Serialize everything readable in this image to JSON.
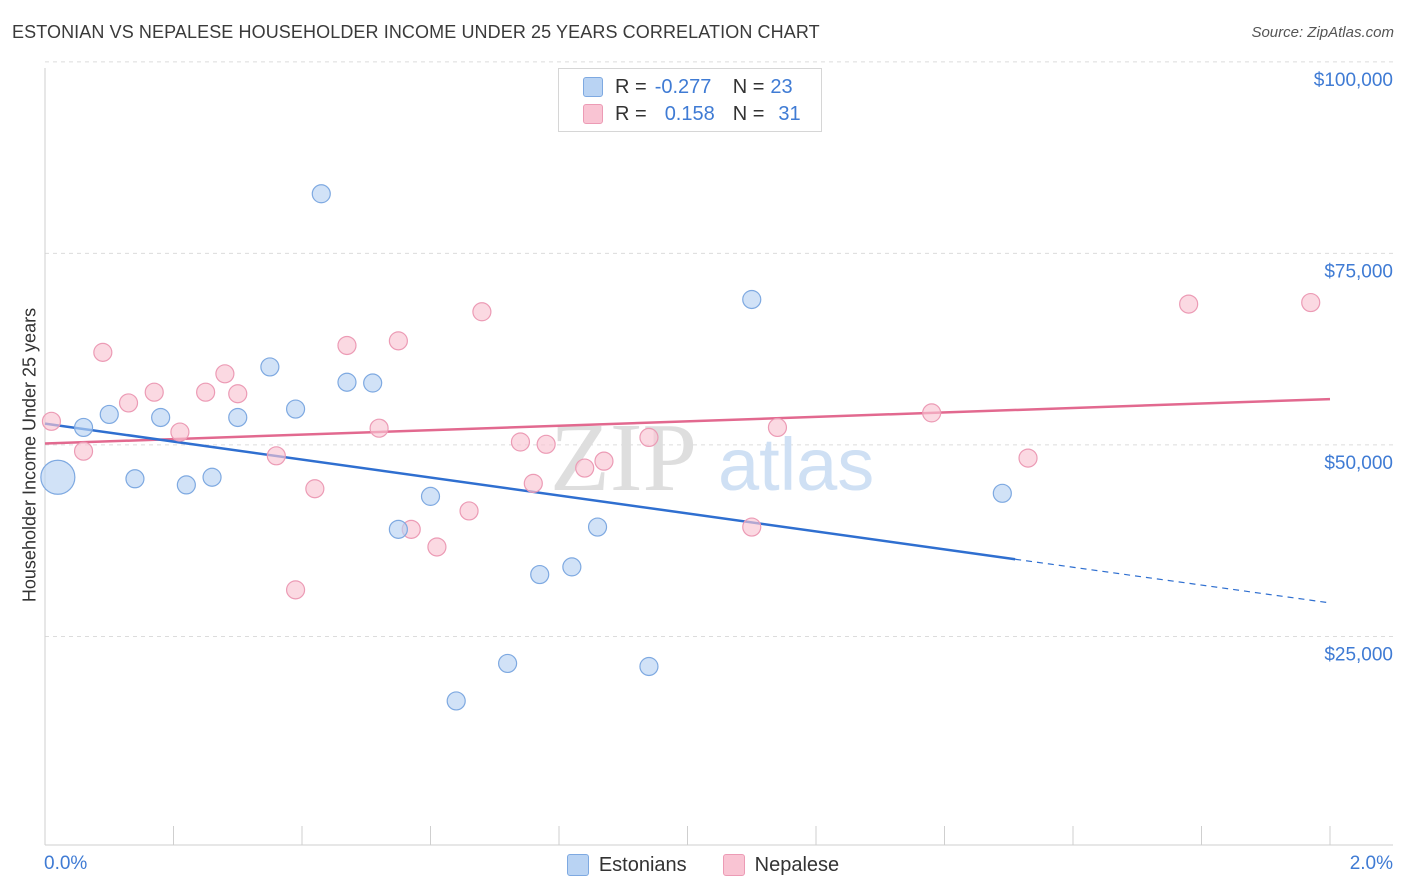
{
  "title": "ESTONIAN VS NEPALESE HOUSEHOLDER INCOME UNDER 25 YEARS CORRELATION CHART",
  "source": "Source: ZipAtlas.com",
  "watermark": {
    "zip": "ZIP",
    "atlas": "atlas"
  },
  "legend": {
    "rows": [
      {
        "r_label": "R =",
        "r_value": "-0.277",
        "n_label": "N =",
        "n_value": "23"
      },
      {
        "r_label": "R =",
        "r_value": "0.158",
        "n_label": "N =",
        "n_value": "31"
      }
    ]
  },
  "bottom_legend": [
    "Estonians",
    "Nepalese"
  ],
  "colors": {
    "estonians_fill": "#b9d3f3",
    "estonians_stroke": "#7ea9e1",
    "estonians_line": "#2f6fd0",
    "nepalese_fill": "#f9c4d3",
    "nepalese_stroke": "#ec9bb5",
    "nepalese_line": "#e2698f",
    "axis_label": "#3f7bd4",
    "grid": "#dcdcdc"
  },
  "chart_data": {
    "type": "scatter",
    "title": "ESTONIAN VS NEPALESE HOUSEHOLDER INCOME UNDER 25 YEARS CORRELATION CHART",
    "xlabel": "",
    "ylabel": "Householder Income Under 25 years",
    "x_tick_labels": [
      "0.0%",
      "2.0%"
    ],
    "y_tick_labels": [
      "$100,000",
      "$75,000",
      "$50,000",
      "$25,000"
    ],
    "y_ticks": [
      100000,
      75000,
      50000,
      25000
    ],
    "xlim": [
      0,
      2.0
    ],
    "ylim": [
      0,
      102000
    ],
    "grid": true,
    "legend_position": "top-center",
    "series": [
      {
        "name": "Estonians",
        "points": [
          {
            "x": 0.02,
            "y": 48000,
            "size": 34
          },
          {
            "x": 0.06,
            "y": 54500,
            "size": 18
          },
          {
            "x": 0.1,
            "y": 56200,
            "size": 18
          },
          {
            "x": 0.14,
            "y": 47800,
            "size": 18
          },
          {
            "x": 0.18,
            "y": 55800,
            "size": 18
          },
          {
            "x": 0.22,
            "y": 47000,
            "size": 18
          },
          {
            "x": 0.26,
            "y": 48000,
            "size": 18
          },
          {
            "x": 0.3,
            "y": 55800,
            "size": 18
          },
          {
            "x": 0.35,
            "y": 62400,
            "size": 18
          },
          {
            "x": 0.39,
            "y": 56900,
            "size": 18
          },
          {
            "x": 0.43,
            "y": 85000,
            "size": 18
          },
          {
            "x": 0.47,
            "y": 60400,
            "size": 18
          },
          {
            "x": 0.51,
            "y": 60300,
            "size": 18
          },
          {
            "x": 0.55,
            "y": 41200,
            "size": 18
          },
          {
            "x": 0.6,
            "y": 45500,
            "size": 18
          },
          {
            "x": 0.64,
            "y": 18800,
            "size": 18
          },
          {
            "x": 0.72,
            "y": 23700,
            "size": 18
          },
          {
            "x": 0.77,
            "y": 35300,
            "size": 18
          },
          {
            "x": 0.82,
            "y": 36300,
            "size": 18
          },
          {
            "x": 0.86,
            "y": 41500,
            "size": 18
          },
          {
            "x": 0.94,
            "y": 23300,
            "size": 18
          },
          {
            "x": 1.1,
            "y": 71200,
            "size": 18
          },
          {
            "x": 1.49,
            "y": 45900,
            "size": 18
          }
        ],
        "trend": {
          "x0": 0.0,
          "y0": 55000,
          "x1": 1.51,
          "y1": 37300,
          "dashed_to_x": 2.0,
          "dashed_to_y": 31600
        }
      },
      {
        "name": "Nepalese",
        "points": [
          {
            "x": 0.01,
            "y": 55300,
            "size": 18
          },
          {
            "x": 0.06,
            "y": 51400,
            "size": 18
          },
          {
            "x": 0.09,
            "y": 64300,
            "size": 18
          },
          {
            "x": 0.13,
            "y": 57700,
            "size": 18
          },
          {
            "x": 0.17,
            "y": 59100,
            "size": 18
          },
          {
            "x": 0.21,
            "y": 53900,
            "size": 18
          },
          {
            "x": 0.25,
            "y": 59100,
            "size": 18
          },
          {
            "x": 0.28,
            "y": 61500,
            "size": 18
          },
          {
            "x": 0.3,
            "y": 58900,
            "size": 18
          },
          {
            "x": 0.36,
            "y": 50800,
            "size": 18
          },
          {
            "x": 0.39,
            "y": 33300,
            "size": 18
          },
          {
            "x": 0.42,
            "y": 46500,
            "size": 18
          },
          {
            "x": 0.47,
            "y": 65200,
            "size": 18
          },
          {
            "x": 0.52,
            "y": 54400,
            "size": 18
          },
          {
            "x": 0.55,
            "y": 65800,
            "size": 18
          },
          {
            "x": 0.57,
            "y": 41200,
            "size": 18
          },
          {
            "x": 0.61,
            "y": 38900,
            "size": 18
          },
          {
            "x": 0.66,
            "y": 43600,
            "size": 18
          },
          {
            "x": 0.68,
            "y": 69600,
            "size": 18
          },
          {
            "x": 0.74,
            "y": 52600,
            "size": 18
          },
          {
            "x": 0.76,
            "y": 47200,
            "size": 18
          },
          {
            "x": 0.78,
            "y": 52300,
            "size": 18
          },
          {
            "x": 0.84,
            "y": 49200,
            "size": 18
          },
          {
            "x": 0.87,
            "y": 50100,
            "size": 18
          },
          {
            "x": 0.94,
            "y": 53200,
            "size": 18
          },
          {
            "x": 1.1,
            "y": 41500,
            "size": 18
          },
          {
            "x": 1.14,
            "y": 54500,
            "size": 18
          },
          {
            "x": 1.38,
            "y": 56400,
            "size": 18
          },
          {
            "x": 1.53,
            "y": 50500,
            "size": 18
          },
          {
            "x": 1.78,
            "y": 70600,
            "size": 18
          },
          {
            "x": 1.97,
            "y": 70800,
            "size": 18
          }
        ],
        "trend": {
          "x0": 0.0,
          "y0": 52400,
          "x1": 2.0,
          "y1": 58200
        }
      }
    ]
  }
}
